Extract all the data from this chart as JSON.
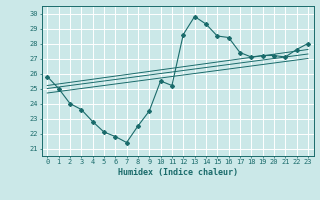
{
  "xlabel": "Humidex (Indice chaleur)",
  "bg_color": "#cbe8e8",
  "grid_color": "#ffffff",
  "line_color": "#1a6b6b",
  "xlim": [
    -0.5,
    23.5
  ],
  "ylim": [
    20.5,
    30.5
  ],
  "xticks": [
    0,
    1,
    2,
    3,
    4,
    5,
    6,
    7,
    8,
    9,
    10,
    11,
    12,
    13,
    14,
    15,
    16,
    17,
    18,
    19,
    20,
    21,
    22,
    23
  ],
  "yticks": [
    21,
    22,
    23,
    24,
    25,
    26,
    27,
    28,
    29,
    30
  ],
  "curve1_x": [
    0,
    1,
    2,
    3,
    4,
    5,
    6,
    7,
    8,
    9,
    10,
    11,
    12,
    13,
    14,
    15,
    16,
    17,
    18,
    19,
    20,
    21,
    22,
    23
  ],
  "curve1_y": [
    25.8,
    25.0,
    24.0,
    23.6,
    22.8,
    22.1,
    21.8,
    21.4,
    22.5,
    23.5,
    25.5,
    25.2,
    28.6,
    29.8,
    29.3,
    28.5,
    28.4,
    27.4,
    27.1,
    27.2,
    27.2,
    27.1,
    27.6,
    28.0
  ],
  "line1_x": [
    0,
    23
  ],
  "line1_y": [
    25.2,
    27.6
  ],
  "line2_x": [
    0,
    23
  ],
  "line2_y": [
    25.0,
    27.3
  ],
  "line3_x": [
    0,
    23
  ],
  "line3_y": [
    24.7,
    27.0
  ]
}
